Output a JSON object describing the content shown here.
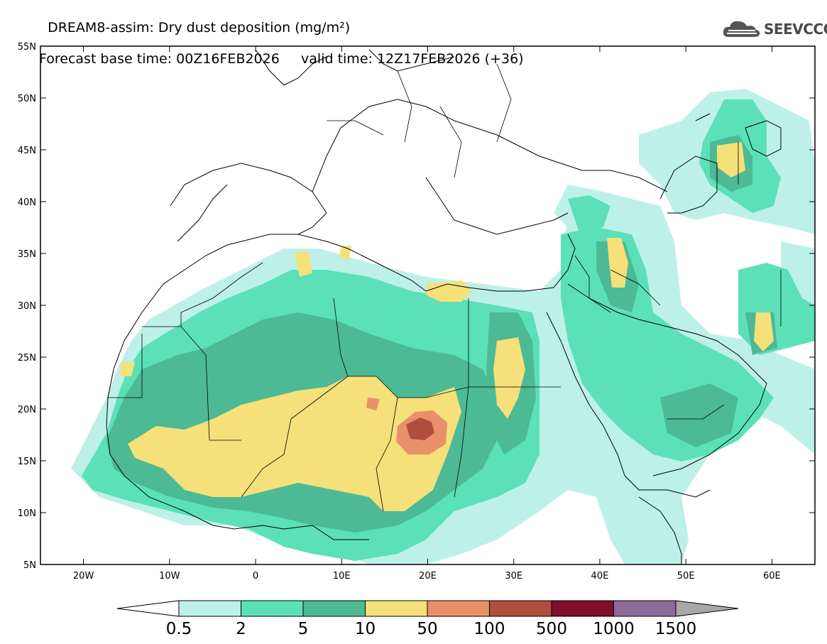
{
  "title": {
    "line1": "DREAM8-assim: Dry dust deposition (mg/m²)",
    "line2_left": "Forecast base time: 00Z16FEB2026",
    "line2_right": "valid time: 12Z17FEB2026 (+36)"
  },
  "logo": {
    "text": "SEEVCCC",
    "icon": "cloud-logo-icon"
  },
  "map": {
    "lat_labels": [
      "55N",
      "50N",
      "45N",
      "40N",
      "35N",
      "30N",
      "25N",
      "20N",
      "15N",
      "10N",
      "5N"
    ],
    "lon_labels": [
      "20W",
      "10W",
      "0",
      "10E",
      "20E",
      "30E",
      "40E",
      "50E",
      "60E"
    ],
    "lon_range": [
      -25,
      65
    ],
    "lat_range": [
      5,
      55
    ]
  },
  "colorbar": {
    "labels": [
      "0.5",
      "2",
      "5",
      "10",
      "50",
      "100",
      "500",
      "1000",
      "1500"
    ],
    "colors": [
      "#bdf1e7",
      "#5ce0b8",
      "#4cba94",
      "#f5e07a",
      "#e8906a",
      "#b04e3e",
      "#7f0f2a",
      "#8c6a9c"
    ],
    "under_color": "#ffffff",
    "over_color": "#a8a8a8"
  }
}
